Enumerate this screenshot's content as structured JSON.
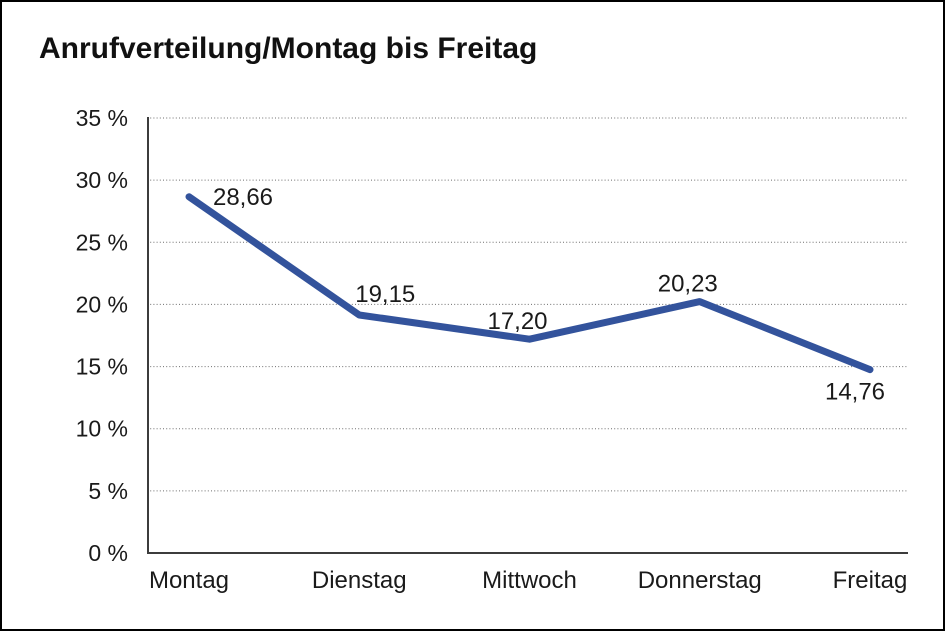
{
  "chart_data": {
    "type": "line",
    "title": "Anrufverteilung/Montag bis Freitag",
    "categories": [
      "Montag",
      "Dienstag",
      "Mittwoch",
      "Donnerstag",
      "Freitag"
    ],
    "values": [
      28.66,
      19.15,
      17.2,
      20.23,
      14.76
    ],
    "point_labels": [
      "28,66",
      "19,15",
      "17,20",
      "20,23",
      "14,76"
    ],
    "y_ticks": [
      0,
      5,
      10,
      15,
      20,
      25,
      30,
      35
    ],
    "y_tick_labels": [
      "0 %",
      "5 %",
      "10 %",
      "15 %",
      "20 %",
      "25 %",
      "30 %",
      "35 %"
    ],
    "ylim": [
      0,
      35
    ],
    "xlabel": "",
    "ylabel": "",
    "grid": "horizontal-dotted",
    "legend": "none",
    "line_color": "#33539C"
  },
  "colors": {
    "background": "#ffffff",
    "frame_border": "#000000",
    "axis": "#3c3c3c",
    "gridline": "#6e6e6e",
    "text": "#1a1a1a"
  }
}
